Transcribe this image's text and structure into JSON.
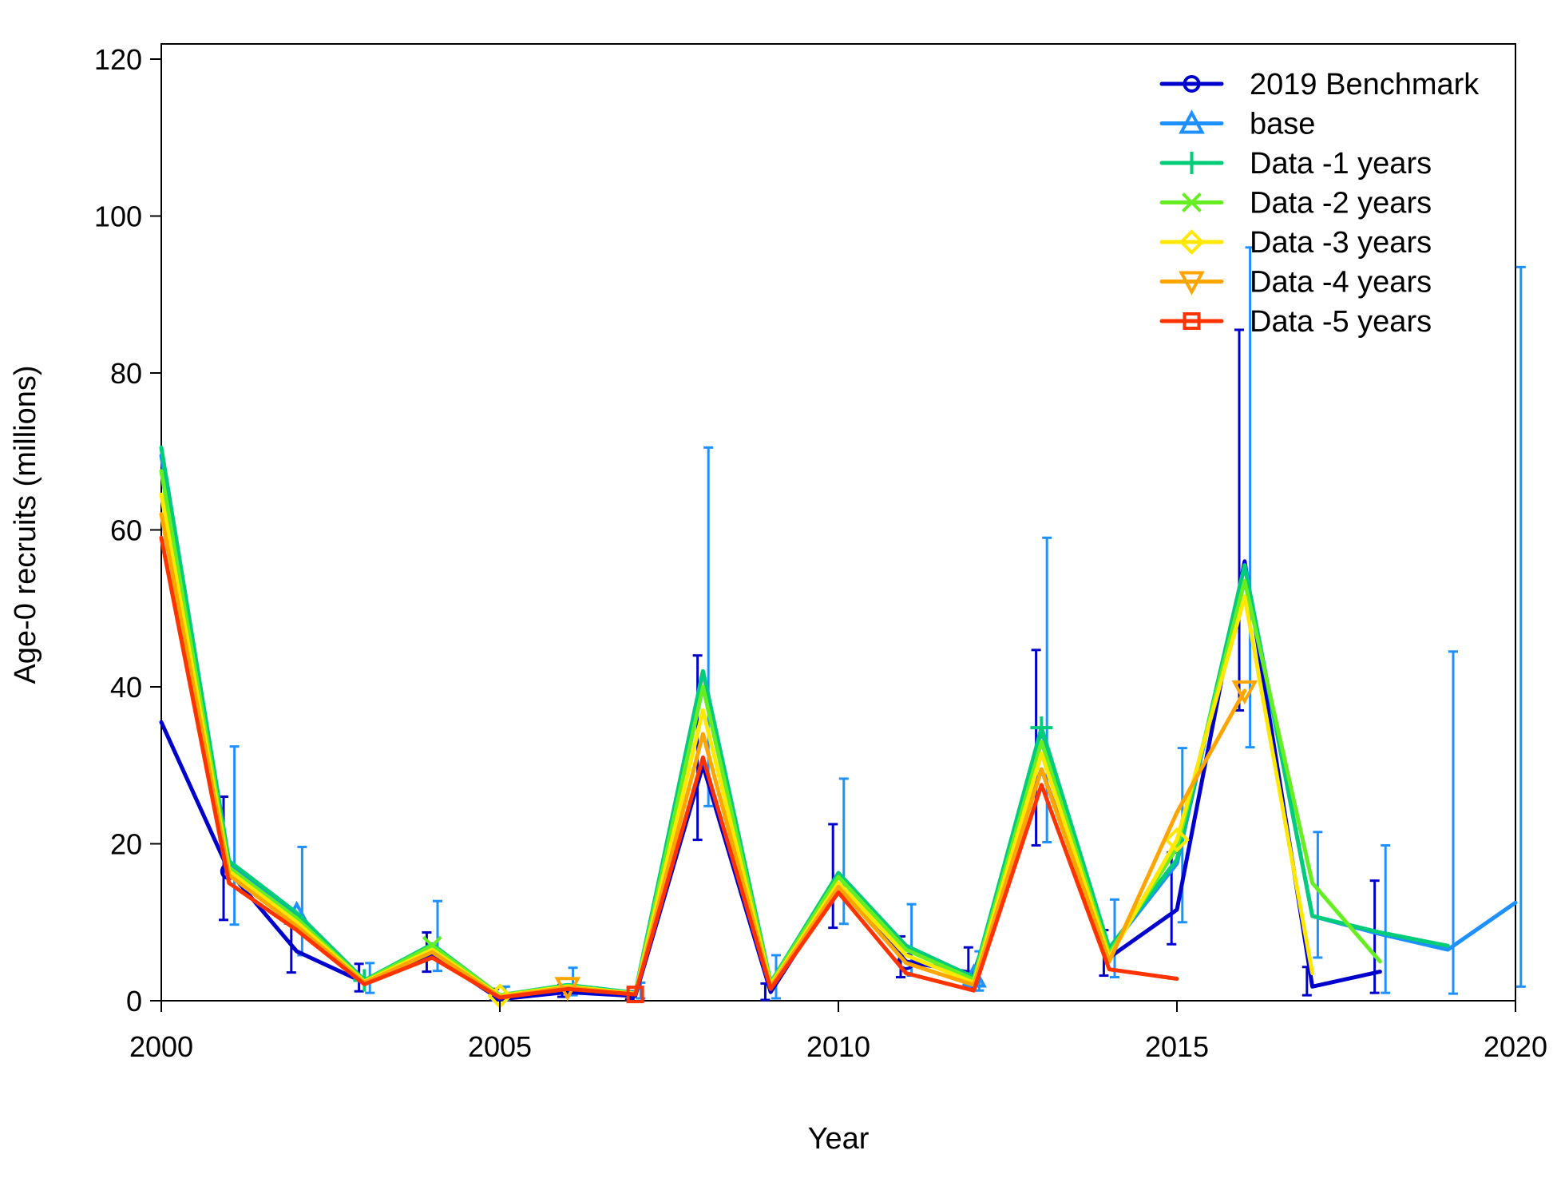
{
  "chart_data": {
    "type": "line",
    "title": "",
    "xlabel": "Year",
    "ylabel": "Age-0 recruits (millions)",
    "xlim": [
      2000,
      2020
    ],
    "ylim": [
      0,
      120
    ],
    "x_ticks": [
      "2000",
      "2005",
      "2010",
      "2015",
      "2020"
    ],
    "y_ticks": [
      "0",
      "20",
      "40",
      "60",
      "80",
      "100",
      "120"
    ],
    "legend_position": "top-right",
    "grid": false,
    "series": [
      {
        "name": "2019 Benchmark",
        "color": "#0000CD",
        "marker": "circle",
        "marker_years": [
          2001,
          2011
        ],
        "x": [
          2000,
          2001,
          2002,
          2003,
          2004,
          2005,
          2006,
          2007,
          2008,
          2009,
          2010,
          2011,
          2012,
          2013,
          2014,
          2015,
          2016,
          2017,
          2018
        ],
        "y": [
          35.5,
          16.5,
          6.3,
          2.3,
          5.8,
          0.2,
          1.1,
          0.6,
          30.0,
          1.1,
          14.5,
          5.0,
          3.5,
          29.5,
          5.5,
          11.6,
          56.0,
          1.8,
          3.7
        ],
        "err_low": [
          null,
          10.3,
          3.6,
          1.2,
          3.7,
          0.05,
          0.5,
          0.2,
          20.5,
          0.1,
          9.3,
          3.0,
          1.7,
          19.8,
          3.2,
          7.2,
          37.0,
          0.7,
          1.0
        ],
        "err_high": [
          null,
          26.0,
          10.8,
          4.7,
          8.7,
          1.5,
          2.0,
          1.2,
          44.0,
          2.2,
          22.5,
          8.2,
          6.8,
          44.7,
          9.0,
          18.9,
          85.5,
          4.3,
          15.3
        ]
      },
      {
        "name": "base",
        "color": "#1E90FF",
        "marker": "triangle",
        "marker_years": [
          2002,
          2012
        ],
        "x": [
          2000,
          2001,
          2002,
          2003,
          2004,
          2005,
          2006,
          2007,
          2008,
          2009,
          2010,
          2011,
          2012,
          2013,
          2014,
          2015,
          2016,
          2017,
          2018,
          2019,
          2020
        ],
        "y": [
          69.5,
          17.5,
          11.0,
          2.5,
          7.0,
          0.7,
          2.0,
          1.0,
          42.0,
          2.3,
          16.0,
          6.8,
          3.0,
          34.5,
          6.5,
          17.5,
          55.5,
          10.8,
          8.5,
          6.5,
          12.5
        ],
        "err_low": [
          null,
          9.7,
          5.8,
          1.0,
          3.8,
          0.1,
          0.7,
          0.3,
          24.8,
          0.3,
          9.8,
          3.2,
          1.3,
          20.2,
          3.0,
          10.0,
          32.3,
          5.5,
          1.0,
          0.9,
          1.8
        ],
        "err_high": [
          null,
          32.4,
          19.6,
          4.8,
          12.7,
          1.8,
          4.2,
          2.3,
          70.5,
          5.8,
          28.3,
          12.3,
          6.3,
          59.0,
          12.9,
          32.2,
          96.0,
          21.5,
          19.8,
          44.5,
          93.5
        ]
      },
      {
        "name": "Data -1 years",
        "color": "#00CC7A",
        "marker": "plus",
        "marker_years": [
          2003,
          2013
        ],
        "x": [
          2000,
          2001,
          2002,
          2003,
          2004,
          2005,
          2006,
          2007,
          2008,
          2009,
          2010,
          2011,
          2012,
          2013,
          2014,
          2015,
          2016,
          2017,
          2018,
          2019
        ],
        "y": [
          70.5,
          17.8,
          11.2,
          2.6,
          7.2,
          0.7,
          2.0,
          1.0,
          42.0,
          2.3,
          16.3,
          7.0,
          3.0,
          34.8,
          6.7,
          18.0,
          55.5,
          10.8,
          8.7,
          7.0
        ],
        "err_low": [],
        "err_high": []
      },
      {
        "name": "Data -2 years",
        "color": "#66EE22",
        "marker": "x",
        "marker_years": [
          2004
        ],
        "x": [
          2000,
          2001,
          2002,
          2003,
          2004,
          2005,
          2006,
          2007,
          2008,
          2009,
          2010,
          2011,
          2012,
          2013,
          2014,
          2015,
          2016,
          2017,
          2018
        ],
        "y": [
          67.5,
          17.0,
          10.5,
          2.5,
          7.0,
          0.7,
          1.9,
          0.9,
          40.0,
          2.2,
          15.8,
          6.5,
          2.7,
          33.0,
          6.0,
          19.5,
          53.5,
          15.0,
          5.0
        ],
        "err_low": [],
        "err_high": []
      },
      {
        "name": "Data -3 years",
        "color": "#FFE800",
        "marker": "diamond",
        "marker_years": [
          2005,
          2015
        ],
        "x": [
          2000,
          2001,
          2002,
          2003,
          2004,
          2005,
          2006,
          2007,
          2008,
          2009,
          2010,
          2011,
          2012,
          2013,
          2014,
          2015,
          2016,
          2017
        ],
        "y": [
          64.5,
          16.5,
          10.0,
          2.4,
          6.5,
          0.6,
          1.8,
          0.9,
          37.0,
          2.0,
          15.0,
          5.8,
          2.3,
          31.5,
          5.5,
          20.5,
          51.5,
          3.5
        ],
        "err_low": [],
        "err_high": []
      },
      {
        "name": "Data -4 years",
        "color": "#FFA500",
        "marker": "triangle-down",
        "marker_years": [
          2006,
          2016
        ],
        "x": [
          2000,
          2001,
          2002,
          2003,
          2004,
          2005,
          2006,
          2007,
          2008,
          2009,
          2010,
          2011,
          2012,
          2013,
          2014,
          2015,
          2016
        ],
        "y": [
          62.0,
          16.0,
          9.5,
          2.3,
          6.2,
          0.5,
          1.7,
          0.8,
          34.0,
          1.8,
          14.5,
          4.8,
          2.0,
          29.5,
          5.0,
          24.0,
          39.5
        ],
        "err_low": [],
        "err_high": []
      },
      {
        "name": "Data -5 years",
        "color": "#FF3300",
        "marker": "square",
        "marker_years": [
          2007
        ],
        "x": [
          2000,
          2001,
          2002,
          2003,
          2004,
          2005,
          2006,
          2007,
          2008,
          2009,
          2010,
          2011,
          2012,
          2013,
          2014,
          2015
        ],
        "y": [
          59.0,
          15.0,
          9.0,
          2.1,
          5.5,
          0.4,
          1.5,
          0.8,
          31.0,
          1.5,
          13.8,
          3.5,
          1.3,
          27.5,
          4.0,
          2.8
        ],
        "err_low": [],
        "err_high": []
      }
    ]
  }
}
